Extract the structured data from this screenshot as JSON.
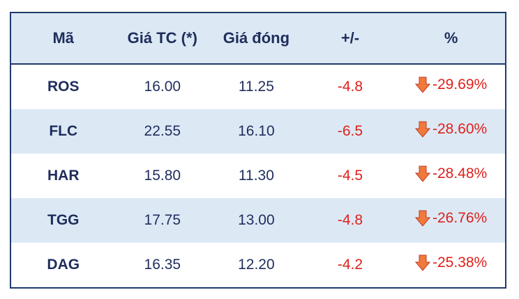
{
  "table": {
    "header": [
      "Mã",
      "Giá TC (*)",
      "Giá đóng",
      "+/-",
      "%"
    ],
    "rows": [
      [
        "ROS",
        "16.00",
        "11.25",
        "-4.8",
        "-29.69%"
      ],
      [
        "FLC",
        "22.55",
        "16.10",
        "-6.5",
        "-28.60%"
      ],
      [
        "HAR",
        "15.80",
        "11.30",
        "-4.5",
        "-28.48%"
      ],
      [
        "TGG",
        "17.75",
        "13.00",
        "-4.8",
        "-26.76%"
      ],
      [
        "DAG",
        "16.35",
        "12.20",
        "-4.2",
        "-25.38%"
      ]
    ]
  }
}
